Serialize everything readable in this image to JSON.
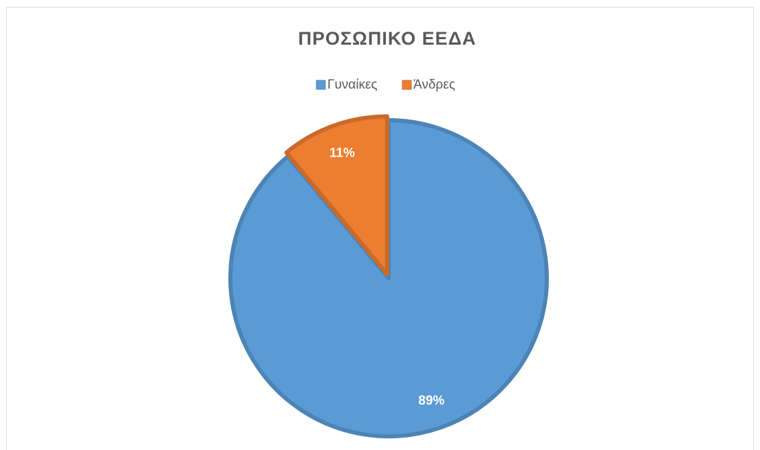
{
  "chart_data": {
    "type": "pie",
    "title": "ΠΡΟΣΩΠΙΚΟ ΕΕΔΑ",
    "categories": [
      "Γυναίκες",
      "Άνδρες"
    ],
    "values": [
      89,
      11
    ],
    "value_labels": [
      "89%",
      "11%"
    ],
    "colors": [
      "#5b9bd5",
      "#ed7d31"
    ],
    "legend": "top"
  }
}
